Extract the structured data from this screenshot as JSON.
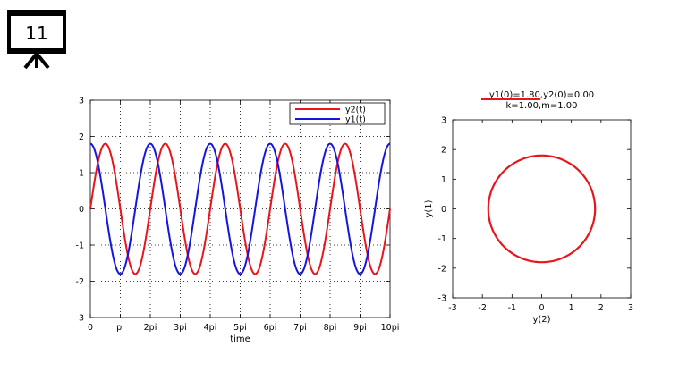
{
  "slide": {
    "number": "11"
  },
  "chart_data": [
    {
      "type": "line",
      "xlabel": "time",
      "ylabel": "",
      "xlim": [
        0,
        31.4159
      ],
      "ylim": [
        -3,
        3
      ],
      "xtick_values": [
        0,
        3.14159,
        6.28319,
        9.42478,
        12.56637,
        15.70796,
        18.84956,
        21.99115,
        25.13274,
        28.27433,
        31.41593
      ],
      "xtick_labels": [
        "0",
        "pi",
        "2pi",
        "3pi",
        "4pi",
        "5pi",
        "6pi",
        "7pi",
        "8pi",
        "9pi",
        "10pi"
      ],
      "ytick_values": [
        -3,
        -2,
        -1,
        0,
        1,
        2,
        3
      ],
      "ytick_labels": [
        "-3",
        "-2",
        "-1",
        "0",
        "1",
        "2",
        "3"
      ],
      "grid": true,
      "legend_position": "top-right",
      "series": [
        {
          "name": "y2(t)",
          "color": "#e8151b",
          "function": "1.8*sin(t)",
          "t_range": [
            0,
            31.4159
          ]
        },
        {
          "name": "y1(t)",
          "color": "#1515e0",
          "function": "1.8*cos(t)",
          "t_range": [
            0,
            31.4159
          ]
        }
      ]
    },
    {
      "type": "line",
      "title": [
        "y1(0)=1.80,y2(0)=0.00",
        "k=1.00,m=1.00"
      ],
      "xlabel": "y(2)",
      "ylabel": "y(1)",
      "xlim": [
        -3,
        3
      ],
      "ylim": [
        -3,
        3
      ],
      "xtick_values": [
        -3,
        -2,
        -1,
        0,
        1,
        2,
        3
      ],
      "xtick_labels": [
        "-3",
        "-2",
        "-1",
        "0",
        "1",
        "2",
        "3"
      ],
      "ytick_values": [
        -3,
        -2,
        -1,
        0,
        1,
        2,
        3
      ],
      "ytick_labels": [
        "-3",
        "-2",
        "-1",
        "0",
        "1",
        "2",
        "3"
      ],
      "grid": false,
      "series": [
        {
          "name": "",
          "color": "#e8151b",
          "function": "circle radius 1.8 (y(2)=1.8*sin(t), y(1)=1.8*cos(t))",
          "radius": 1.8
        }
      ]
    }
  ]
}
